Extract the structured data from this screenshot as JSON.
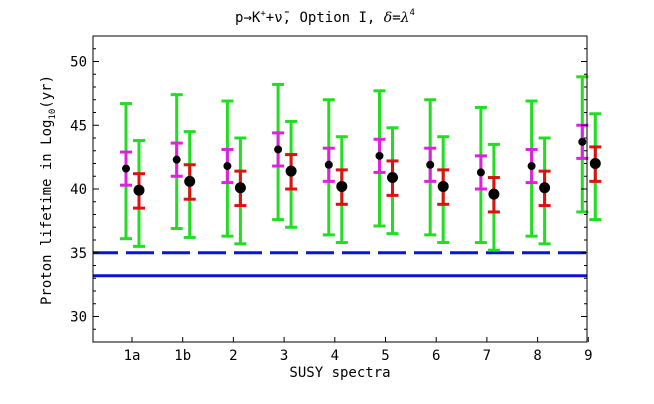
{
  "chart_data": {
    "type": "errorbar",
    "title_parts": {
      "reaction": "p→K",
      "kaon_charge": "+",
      "plus_nu": "+ν̄,",
      "option": " Option I, ",
      "delta": "δ",
      "equals": "=",
      "lambda": "λ",
      "exponent": "4"
    },
    "xlabel": "SUSY spectra",
    "ylabel_prefix": "Proton lifetime in Log",
    "ylabel_sub": "10",
    "ylabel_suffix": "(yr)",
    "ylim": [
      28,
      52
    ],
    "yticks": [
      30,
      35,
      40,
      45,
      50
    ],
    "categories": [
      "1a",
      "1b",
      "2",
      "3",
      "4",
      "5",
      "6",
      "7",
      "8",
      "9"
    ],
    "colors": {
      "outer_bar": "#22dd22",
      "inner_left_bar": "#e020e0",
      "inner_right_bar": "#dd1111",
      "point": "#000000",
      "limit_line": "#0a14d8"
    },
    "series": [
      {
        "central": [
          41.6,
          42.3,
          41.8,
          43.1,
          41.9,
          42.6,
          41.9,
          41.3,
          41.8,
          43.7
        ],
        "outer_low": [
          36.1,
          36.9,
          36.3,
          37.6,
          36.4,
          37.1,
          36.4,
          35.8,
          36.3,
          38.2
        ],
        "outer_high": [
          46.7,
          47.4,
          46.9,
          48.2,
          47.0,
          47.7,
          47.0,
          46.4,
          46.9,
          48.8
        ],
        "inner_low": [
          40.3,
          41.0,
          40.5,
          41.8,
          40.6,
          41.3,
          40.6,
          40.0,
          40.5,
          42.4
        ],
        "inner_high": [
          42.9,
          43.6,
          43.1,
          44.4,
          43.2,
          43.9,
          43.2,
          42.6,
          43.1,
          45.0
        ]
      },
      {
        "central": [
          39.9,
          40.6,
          40.1,
          41.4,
          40.2,
          40.9,
          40.2,
          39.6,
          40.1,
          42.0
        ],
        "outer_low": [
          35.5,
          36.2,
          35.7,
          37.0,
          35.8,
          36.5,
          35.8,
          35.2,
          35.7,
          37.6
        ],
        "outer_high": [
          43.8,
          44.5,
          44.0,
          45.3,
          44.1,
          44.8,
          44.1,
          43.5,
          44.0,
          45.9
        ],
        "inner_low": [
          38.5,
          39.2,
          38.7,
          40.0,
          38.8,
          39.5,
          38.8,
          38.2,
          38.7,
          40.6
        ],
        "inner_high": [
          41.2,
          41.9,
          41.4,
          42.7,
          41.5,
          42.2,
          41.5,
          40.9,
          41.4,
          43.3
        ]
      }
    ],
    "reference_lines": [
      {
        "y": 35.0,
        "style": "dashed"
      },
      {
        "y": 33.2,
        "style": "solid"
      }
    ],
    "grid": false
  }
}
